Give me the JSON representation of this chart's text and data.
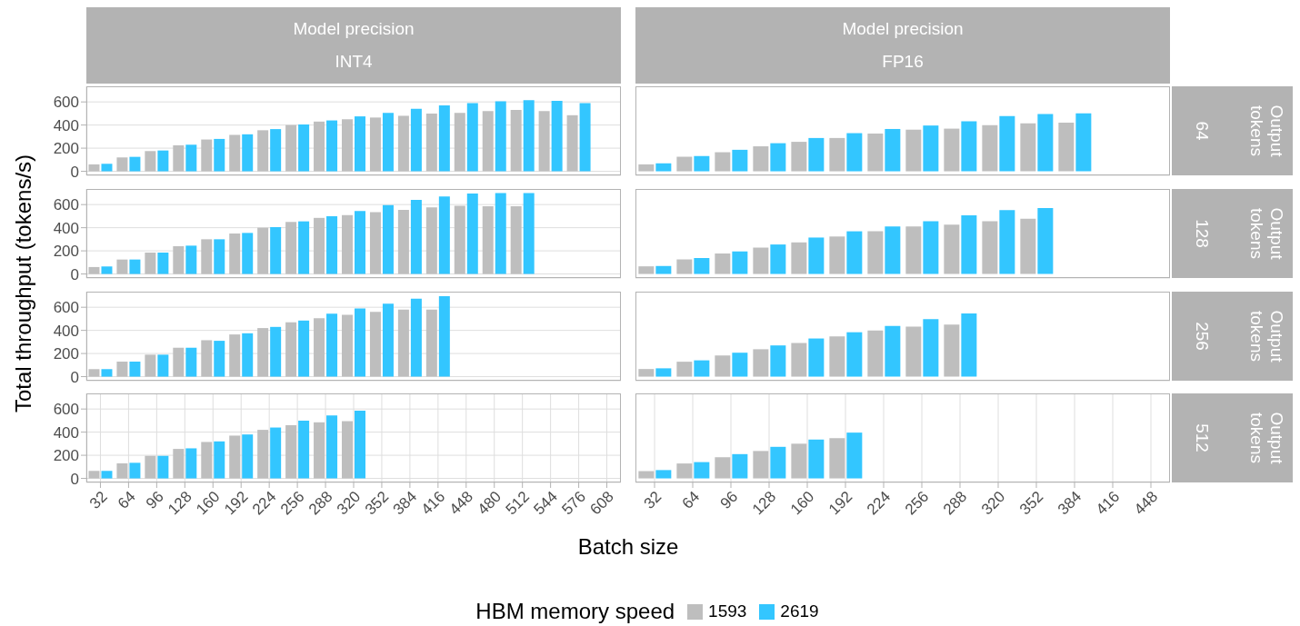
{
  "chart_data": [
    {
      "type": "bar",
      "title": "Model precision",
      "subtitle": "INT4",
      "ylabel": "Total throughput (tokens/s)",
      "xlabel": "Batch size",
      "legend_title": "HBM memory speed",
      "legend": "bottom",
      "grid": true,
      "tick_labels": "y",
      "ylim": [
        -35,
        735
      ],
      "yticks": [
        0,
        200,
        400,
        600
      ],
      "categories": [
        "32",
        "64",
        "96",
        "128",
        "160",
        "192",
        "224",
        "256",
        "288",
        "320",
        "352",
        "384",
        "416",
        "448",
        "480",
        "512",
        "544",
        "576",
        "608"
      ],
      "series": [
        {
          "name": "1593",
          "color": "#bebebe",
          "values": [
            60,
            120,
            175,
            225,
            275,
            315,
            355,
            400,
            430,
            450,
            465,
            480,
            500,
            505,
            520,
            530,
            520,
            485,
            null
          ]
        },
        {
          "name": "2619",
          "color": "#33c6ff",
          "values": [
            65,
            125,
            180,
            230,
            280,
            320,
            365,
            405,
            440,
            475,
            505,
            540,
            570,
            590,
            605,
            615,
            610,
            590,
            null
          ]
        }
      ]
    },
    {
      "type": "bar",
      "title": "Model precision",
      "subtitle": "FP16",
      "annotations": [
        "Output tokens 64"
      ],
      "grid": true,
      "tick_labels": false,
      "ylim": [
        -35,
        735
      ],
      "yticks": [
        0,
        200,
        400,
        600
      ],
      "categories": [
        "32",
        "64",
        "96",
        "128",
        "160",
        "192",
        "224",
        "256",
        "288",
        "320",
        "352",
        "384",
        "416",
        "448"
      ],
      "series": [
        {
          "name": "1593",
          "color": "#bebebe",
          "values": [
            60,
            126,
            165,
            216,
            255,
            288,
            327,
            360,
            369,
            399,
            414,
            420,
            null,
            null
          ]
        },
        {
          "name": "2619",
          "color": "#33c6ff",
          "values": [
            69,
            132,
            186,
            243,
            288,
            330,
            366,
            396,
            432,
            477,
            495,
            501,
            null,
            null
          ]
        }
      ]
    },
    {
      "type": "bar",
      "grid": true,
      "tick_labels": "y",
      "ylim": [
        -35,
        735
      ],
      "yticks": [
        0,
        200,
        400,
        600
      ],
      "categories": [
        "32",
        "64",
        "96",
        "128",
        "160",
        "192",
        "224",
        "256",
        "288",
        "320",
        "352",
        "384",
        "416",
        "448",
        "480",
        "512",
        "544",
        "576",
        "608"
      ],
      "series": [
        {
          "name": "1593",
          "color": "#bebebe",
          "values": [
            60,
            125,
            185,
            240,
            300,
            350,
            400,
            450,
            485,
            510,
            535,
            555,
            575,
            590,
            585,
            585,
            null,
            null,
            null
          ]
        },
        {
          "name": "2619",
          "color": "#33c6ff",
          "values": [
            65,
            125,
            185,
            245,
            300,
            355,
            405,
            455,
            500,
            545,
            595,
            640,
            670,
            695,
            700,
            700,
            null,
            null,
            null
          ]
        }
      ]
    },
    {
      "type": "bar",
      "annotations": [
        "Output tokens 128"
      ],
      "grid": true,
      "tick_labels": false,
      "ylim": [
        -35,
        735
      ],
      "yticks": [
        0,
        200,
        400,
        600
      ],
      "categories": [
        "32",
        "64",
        "96",
        "128",
        "160",
        "192",
        "224",
        "256",
        "288",
        "320",
        "352",
        "384",
        "416",
        "448"
      ],
      "series": [
        {
          "name": "1593",
          "color": "#bebebe",
          "values": [
            66,
            126,
            177,
            228,
            273,
            324,
            369,
            411,
            426,
            456,
            477,
            null,
            null,
            null
          ]
        },
        {
          "name": "2619",
          "color": "#33c6ff",
          "values": [
            69,
            138,
            195,
            255,
            315,
            369,
            411,
            456,
            507,
            552,
            570,
            null,
            null,
            null
          ]
        }
      ]
    },
    {
      "type": "bar",
      "grid": true,
      "tick_labels": "y",
      "ylim": [
        -35,
        735
      ],
      "yticks": [
        0,
        200,
        400,
        600
      ],
      "categories": [
        "32",
        "64",
        "96",
        "128",
        "160",
        "192",
        "224",
        "256",
        "288",
        "320",
        "352",
        "384",
        "416",
        "448",
        "480",
        "512",
        "544",
        "576",
        "608"
      ],
      "series": [
        {
          "name": "1593",
          "color": "#bebebe",
          "values": [
            65,
            130,
            190,
            250,
            315,
            365,
            420,
            470,
            505,
            535,
            560,
            580,
            580,
            null,
            null,
            null,
            null,
            null,
            null
          ]
        },
        {
          "name": "2619",
          "color": "#33c6ff",
          "values": [
            65,
            130,
            190,
            250,
            310,
            375,
            430,
            485,
            545,
            590,
            630,
            675,
            695,
            null,
            null,
            null,
            null,
            null,
            null
          ]
        }
      ]
    },
    {
      "type": "bar",
      "annotations": [
        "Output tokens 256"
      ],
      "grid": true,
      "tick_labels": false,
      "ylim": [
        -35,
        735
      ],
      "yticks": [
        0,
        200,
        400,
        600
      ],
      "categories": [
        "32",
        "64",
        "96",
        "128",
        "160",
        "192",
        "224",
        "256",
        "288",
        "320",
        "352",
        "384",
        "416",
        "448"
      ],
      "series": [
        {
          "name": "1593",
          "color": "#bebebe",
          "values": [
            66,
            129,
            183,
            237,
            291,
            348,
            399,
            432,
            450,
            null,
            null,
            null,
            null,
            null
          ]
        },
        {
          "name": "2619",
          "color": "#33c6ff",
          "values": [
            72,
            141,
            207,
            270,
            330,
            384,
            438,
            498,
            546,
            null,
            null,
            null,
            null,
            null
          ]
        }
      ]
    },
    {
      "type": "bar",
      "grid": true,
      "ylim": [
        -35,
        735
      ],
      "yticks": [
        0,
        200,
        400,
        600
      ],
      "categories": [
        "32",
        "64",
        "96",
        "128",
        "160",
        "192",
        "224",
        "256",
        "288",
        "320",
        "352",
        "384",
        "416",
        "448",
        "480",
        "512",
        "544",
        "576",
        "608"
      ],
      "series": [
        {
          "name": "1593",
          "color": "#bebebe",
          "values": [
            65,
            130,
            195,
            255,
            315,
            370,
            420,
            460,
            485,
            495,
            null,
            null,
            null,
            null,
            null,
            null,
            null,
            null,
            null
          ]
        },
        {
          "name": "2619",
          "color": "#33c6ff",
          "values": [
            65,
            135,
            195,
            260,
            320,
            380,
            440,
            500,
            545,
            585,
            null,
            null,
            null,
            null,
            null,
            null,
            null,
            null,
            null
          ]
        }
      ]
    },
    {
      "type": "bar",
      "annotations": [
        "Output tokens 512"
      ],
      "grid": true,
      "tick_labels": "x",
      "ylim": [
        -35,
        735
      ],
      "yticks": [
        0,
        200,
        400,
        600
      ],
      "categories": [
        "32",
        "64",
        "96",
        "128",
        "160",
        "192",
        "224",
        "256",
        "288",
        "320",
        "352",
        "384",
        "416",
        "448"
      ],
      "series": [
        {
          "name": "1593",
          "color": "#bebebe",
          "values": [
            63,
            129,
            183,
            237,
            300,
            348,
            null,
            null,
            null,
            null,
            null,
            null,
            null,
            null
          ]
        },
        {
          "name": "2619",
          "color": "#33c6ff",
          "values": [
            72,
            141,
            210,
            273,
            336,
            396,
            null,
            null,
            null,
            null,
            null,
            null,
            null,
            null
          ]
        }
      ]
    }
  ]
}
